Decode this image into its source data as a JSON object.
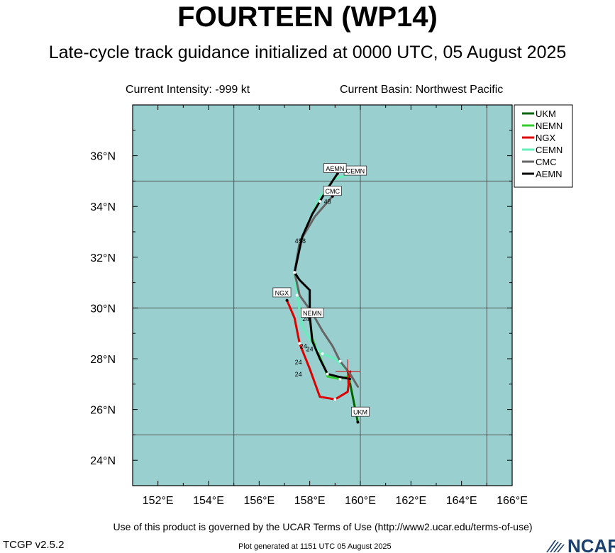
{
  "title": "FOURTEEN (WP14)",
  "subtitle": "Late-cycle track guidance initialized at 0000 UTC, 05 August 2025",
  "current_intensity": "Current Intensity: -999 kt",
  "current_basin": "Current Basin: Northwest Pacific",
  "terms": "Use of this product is governed by the UCAR Terms of Use (http://www2.ucar.edu/terms-of-use)",
  "version": "TCGP v2.5.2",
  "generated": "Plot generated at 1151 UTC   05 August 2025",
  "logo_text": "NCAR",
  "colors": {
    "ocean": "#99cfcf",
    "grid": "#555555",
    "storm_marker": "#cc0000",
    "logo": "#1b3f6e"
  },
  "chart_data": {
    "type": "line",
    "lon_range": [
      151,
      166
    ],
    "lat_range": [
      23,
      38
    ],
    "x_ticks": [
      152,
      154,
      156,
      158,
      160,
      162,
      164,
      166
    ],
    "y_ticks": [
      24,
      26,
      28,
      30,
      32,
      34,
      36
    ],
    "x_tick_labels": [
      "152°E",
      "154°E",
      "156°E",
      "158°E",
      "160°E",
      "162°E",
      "164°E",
      "166°E"
    ],
    "y_tick_labels": [
      "24°N",
      "26°N",
      "28°N",
      "30°N",
      "32°N",
      "34°N",
      "36°N"
    ],
    "grid_lons": [
      155,
      160,
      165
    ],
    "grid_lats": [
      25,
      30,
      35
    ],
    "initial_position": {
      "lon": 159.5,
      "lat": 27.5
    },
    "legend_position": "outside-right",
    "series": [
      {
        "name": "UKM",
        "color": "#006400",
        "points": [
          [
            159.5,
            27.5
          ],
          [
            159.9,
            25.5
          ]
        ],
        "label": {
          "text": "UKM",
          "lon": 160.0,
          "lat": 25.9
        }
      },
      {
        "name": "NEMN",
        "color": "#33cc33",
        "points": [
          [
            159.6,
            27.1
          ],
          [
            159.5,
            27.3
          ],
          [
            159.2,
            27.2
          ],
          [
            158.7,
            27.3
          ],
          [
            158.6,
            27.6
          ],
          [
            158.3,
            28.3
          ],
          [
            158.1,
            28.8
          ],
          [
            158.0,
            29.6
          ]
        ],
        "label": {
          "text": "NEMN",
          "lon": 158.1,
          "lat": 29.8
        }
      },
      {
        "name": "NGX",
        "color": "#dd0000",
        "points": [
          [
            159.6,
            27.5
          ],
          [
            159.5,
            26.7
          ],
          [
            159.0,
            26.4
          ],
          [
            158.4,
            26.5
          ],
          [
            158.0,
            27.6
          ],
          [
            157.6,
            28.6
          ],
          [
            157.4,
            29.6
          ],
          [
            157.1,
            30.3
          ]
        ],
        "label": {
          "text": "NGX",
          "lon": 156.9,
          "lat": 30.6
        }
      },
      {
        "name": "CEMN",
        "color": "#66eebb",
        "points": [
          [
            159.5,
            27.5
          ],
          [
            159.0,
            28.0
          ],
          [
            158.5,
            28.2
          ],
          [
            158.1,
            28.6
          ],
          [
            157.7,
            29.3
          ],
          [
            157.5,
            30.5
          ],
          [
            157.4,
            31.4
          ],
          [
            157.6,
            32.5
          ],
          [
            158.0,
            33.5
          ],
          [
            158.4,
            34.4
          ],
          [
            159.0,
            35.1
          ],
          [
            159.7,
            35.3
          ]
        ],
        "label": {
          "text": "CEMN",
          "lon": 159.8,
          "lat": 35.4
        }
      },
      {
        "name": "CMC",
        "color": "#666666",
        "points": [
          [
            159.9,
            26.9
          ],
          [
            159.6,
            27.4
          ],
          [
            159.2,
            27.9
          ],
          [
            158.9,
            28.5
          ],
          [
            158.5,
            29.1
          ],
          [
            158.1,
            29.8
          ],
          [
            157.6,
            30.5
          ],
          [
            157.4,
            31.4
          ],
          [
            157.6,
            32.6
          ],
          [
            158.2,
            33.6
          ],
          [
            158.9,
            34.4
          ]
        ],
        "label": {
          "text": "CMC",
          "lon": 158.9,
          "lat": 34.6
        }
      },
      {
        "name": "AEMN",
        "color": "#000000",
        "points": [
          [
            159.6,
            27.2
          ],
          [
            159.1,
            27.3
          ],
          [
            158.7,
            27.4
          ],
          [
            158.4,
            28.0
          ],
          [
            158.1,
            28.7
          ],
          [
            158.0,
            29.7
          ],
          [
            158.0,
            30.7
          ],
          [
            157.6,
            31.1
          ],
          [
            157.4,
            31.4
          ],
          [
            157.7,
            32.8
          ],
          [
            158.1,
            33.7
          ],
          [
            158.4,
            34.2
          ],
          [
            158.7,
            34.7
          ],
          [
            159.1,
            35.3
          ]
        ],
        "label": {
          "text": "AEMN",
          "lon": 159.0,
          "lat": 35.5
        }
      }
    ],
    "annotations": [
      {
        "text": "24",
        "lon": 157.85,
        "lat": 29.48
      },
      {
        "text": "24",
        "lon": 157.75,
        "lat": 28.4
      },
      {
        "text": "24",
        "lon": 158.0,
        "lat": 28.3
      },
      {
        "text": "24",
        "lon": 157.55,
        "lat": 27.77
      },
      {
        "text": "24",
        "lon": 157.55,
        "lat": 27.3
      },
      {
        "text": "48",
        "lon": 157.55,
        "lat": 32.55
      },
      {
        "text": "48",
        "lon": 157.7,
        "lat": 32.55
      },
      {
        "text": "48",
        "lon": 158.7,
        "lat": 34.1
      }
    ]
  }
}
